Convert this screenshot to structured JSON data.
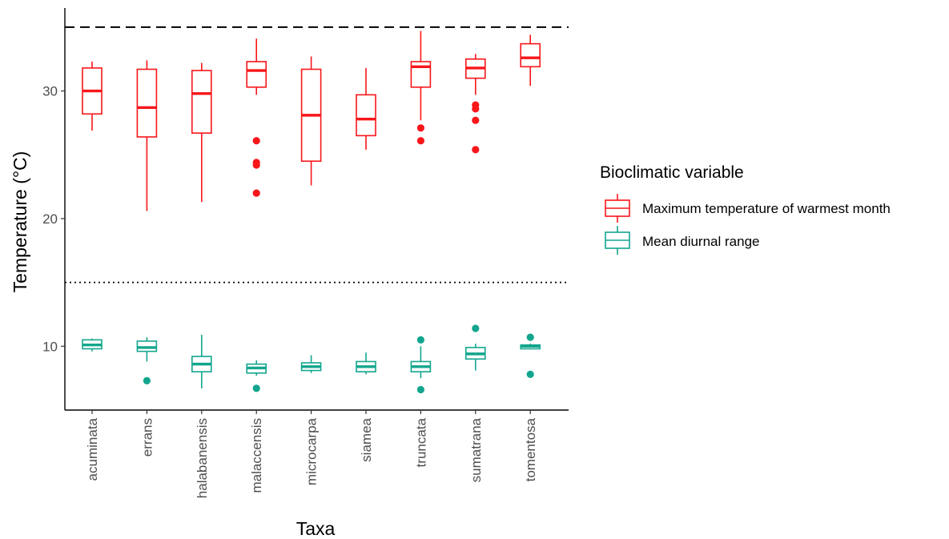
{
  "chart_data": {
    "type": "box",
    "xlabel": "Taxa",
    "ylabel": "Temperature (°C)",
    "categories": [
      "acuminata",
      "errans",
      "halabanensis",
      "malaccensis",
      "microcarpa",
      "siamea",
      "truncata",
      "sumatrana",
      "tomentosa"
    ],
    "ylim": [
      5,
      36.5
    ],
    "yticks": [
      10,
      20,
      30
    ],
    "grid": false,
    "reference_lines": [
      {
        "value": 35,
        "style": "dashed"
      },
      {
        "value": 15,
        "style": "dotted"
      }
    ],
    "legend": {
      "title": "Bioclimatic variable",
      "position": "right",
      "entries": [
        "Maximum temperature of warmest month",
        "Mean diurnal range"
      ]
    },
    "series": [
      {
        "name": "Maximum temperature of warmest month",
        "color": "#F8161A",
        "boxes": [
          {
            "category": "acuminata",
            "whisker_low": 26.9,
            "q1": 28.2,
            "median": 30.0,
            "q3": 31.8,
            "whisker_high": 32.3,
            "outliers": []
          },
          {
            "category": "errans",
            "whisker_low": 20.6,
            "q1": 26.4,
            "median": 28.7,
            "q3": 31.7,
            "whisker_high": 32.4,
            "outliers": []
          },
          {
            "category": "halabanensis",
            "whisker_low": 21.3,
            "q1": 26.7,
            "median": 29.8,
            "q3": 31.6,
            "whisker_high": 32.2,
            "outliers": []
          },
          {
            "category": "malaccensis",
            "whisker_low": 29.7,
            "q1": 30.3,
            "median": 31.6,
            "q3": 32.3,
            "whisker_high": 34.1,
            "outliers": [
              26.1,
              24.4,
              24.2,
              22.0
            ]
          },
          {
            "category": "microcarpa",
            "whisker_low": 22.6,
            "q1": 24.5,
            "median": 28.1,
            "q3": 31.7,
            "whisker_high": 32.7,
            "outliers": []
          },
          {
            "category": "siamea",
            "whisker_low": 25.4,
            "q1": 26.5,
            "median": 27.8,
            "q3": 29.7,
            "whisker_high": 31.8,
            "outliers": []
          },
          {
            "category": "truncata",
            "whisker_low": 27.7,
            "q1": 30.3,
            "median": 31.9,
            "q3": 32.3,
            "whisker_high": 34.7,
            "outliers": [
              27.1,
              26.1
            ]
          },
          {
            "category": "sumatrana",
            "whisker_low": 29.7,
            "q1": 31.0,
            "median": 31.8,
            "q3": 32.5,
            "whisker_high": 32.9,
            "outliers": [
              28.9,
              28.6,
              27.7,
              25.4
            ]
          },
          {
            "category": "tomentosa",
            "whisker_low": 30.4,
            "q1": 31.9,
            "median": 32.6,
            "q3": 33.7,
            "whisker_high": 34.4,
            "outliers": []
          }
        ]
      },
      {
        "name": "Mean diurnal range",
        "color": "#13A68E",
        "boxes": [
          {
            "category": "acuminata",
            "whisker_low": 9.6,
            "q1": 9.8,
            "median": 10.1,
            "q3": 10.5,
            "whisker_high": 10.6,
            "outliers": []
          },
          {
            "category": "errans",
            "whisker_low": 8.8,
            "q1": 9.6,
            "median": 9.9,
            "q3": 10.4,
            "whisker_high": 10.7,
            "outliers": [
              7.3
            ]
          },
          {
            "category": "halabanensis",
            "whisker_low": 6.7,
            "q1": 8.0,
            "median": 8.6,
            "q3": 9.2,
            "whisker_high": 10.9,
            "outliers": []
          },
          {
            "category": "malaccensis",
            "whisker_low": 7.7,
            "q1": 7.9,
            "median": 8.3,
            "q3": 8.6,
            "whisker_high": 8.9,
            "outliers": [
              6.7
            ]
          },
          {
            "category": "microcarpa",
            "whisker_low": 7.9,
            "q1": 8.1,
            "median": 8.4,
            "q3": 8.7,
            "whisker_high": 9.3,
            "outliers": []
          },
          {
            "category": "siamea",
            "whisker_low": 7.8,
            "q1": 8.0,
            "median": 8.4,
            "q3": 8.8,
            "whisker_high": 9.5,
            "outliers": []
          },
          {
            "category": "truncata",
            "whisker_low": 7.5,
            "q1": 8.0,
            "median": 8.4,
            "q3": 8.8,
            "whisker_high": 10.0,
            "outliers": [
              10.5,
              6.6
            ]
          },
          {
            "category": "sumatrana",
            "whisker_low": 8.1,
            "q1": 9.0,
            "median": 9.4,
            "q3": 9.9,
            "whisker_high": 10.2,
            "outliers": [
              11.4
            ]
          },
          {
            "category": "tomentosa",
            "whisker_low": 9.8,
            "q1": 9.8,
            "median": 10.0,
            "q3": 10.1,
            "whisker_high": 10.2,
            "outliers": [
              10.7,
              7.8
            ]
          }
        ]
      }
    ]
  }
}
